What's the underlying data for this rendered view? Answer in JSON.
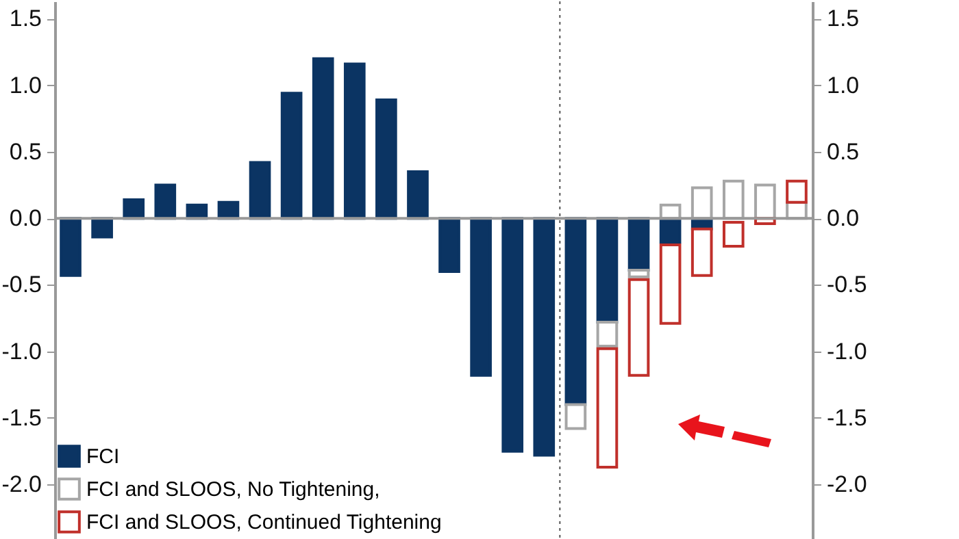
{
  "chart_data": {
    "type": "bar",
    "categories": [
      null,
      null,
      null,
      null,
      null,
      null,
      null,
      null,
      null,
      null,
      null,
      null,
      null,
      null,
      null,
      null,
      null,
      null,
      null,
      null,
      null,
      null,
      null,
      null
    ],
    "series": [
      {
        "name": "FCI",
        "color": "#0b3463",
        "values": [
          -0.43,
          -0.14,
          0.14,
          0.25,
          0.1,
          0.12,
          0.42,
          0.94,
          1.2,
          1.16,
          0.89,
          0.35,
          -0.4,
          -1.18,
          -1.75,
          -1.78,
          -1.4,
          -0.78,
          -0.39,
          -0.18,
          -0.08,
          null,
          null,
          null
        ]
      },
      {
        "name": "FCI and SLOOS, No Tightening,",
        "color": "#a6a6a6",
        "base": [
          null,
          null,
          null,
          null,
          null,
          null,
          null,
          null,
          null,
          null,
          null,
          null,
          null,
          null,
          null,
          null,
          -1.4,
          -0.78,
          -0.39,
          0,
          0,
          0,
          0,
          0
        ],
        "values": [
          null,
          null,
          null,
          null,
          null,
          null,
          null,
          null,
          null,
          null,
          null,
          null,
          null,
          null,
          null,
          null,
          -0.18,
          -0.18,
          -0.05,
          0.1,
          0.23,
          0.28,
          0.25,
          0.12
        ]
      },
      {
        "name": "FCI and SLOOS, Continued Tightening",
        "color": "#c0302b",
        "base": [
          null,
          null,
          null,
          null,
          null,
          null,
          null,
          null,
          null,
          null,
          null,
          null,
          null,
          null,
          null,
          null,
          null,
          -0.98,
          -0.46,
          -0.2,
          -0.08,
          -0.03,
          0,
          0.12
        ],
        "values": [
          null,
          null,
          null,
          null,
          null,
          null,
          null,
          null,
          null,
          null,
          null,
          null,
          null,
          null,
          null,
          null,
          null,
          -0.89,
          -0.72,
          -0.59,
          -0.35,
          -0.18,
          -0.04,
          0.16
        ]
      }
    ],
    "ylim": [
      -2.42,
      1.63
    ],
    "yticks": [
      {
        "value": -2,
        "label": "-2.0"
      },
      {
        "value": -1.5,
        "label": "-1.5"
      },
      {
        "value": -1,
        "label": "-1.0"
      },
      {
        "value": -0.5,
        "label": "-0.5"
      },
      {
        "value": 0,
        "label": "0.0"
      },
      {
        "value": 0.5,
        "label": "0.5"
      },
      {
        "value": 1,
        "label": "1.0"
      },
      {
        "value": 1.5,
        "label": "1.5"
      }
    ],
    "y2lim": [
      -2.42,
      1.63
    ],
    "y2ticks": [
      {
        "value": -2,
        "label": "-2.0"
      },
      {
        "value": -1.5,
        "label": "-1.5"
      },
      {
        "value": -1,
        "label": "-1.0"
      },
      {
        "value": -0.5,
        "label": "-0.5"
      },
      {
        "value": 0,
        "label": "0.0"
      },
      {
        "value": 0.5,
        "label": "0.5"
      },
      {
        "value": 1,
        "label": "1.0"
      },
      {
        "value": 1.5,
        "label": "1.5"
      }
    ],
    "tick_labels": "y",
    "grid": false,
    "legend": "bottom left"
  }
}
